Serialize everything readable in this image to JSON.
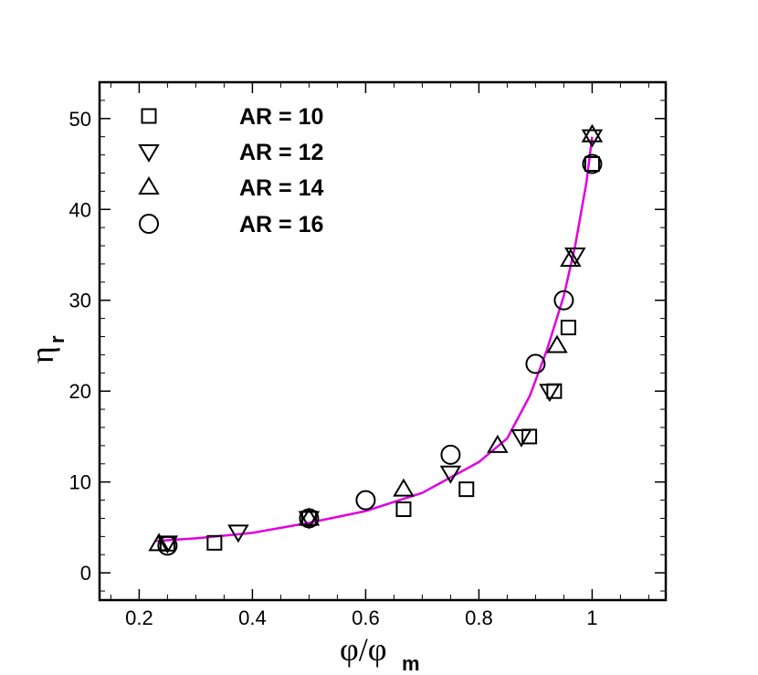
{
  "chart_data": {
    "type": "scatter",
    "xlabel": "φ/φ",
    "xlabel_sub": "m",
    "ylabel": "η",
    "ylabel_sub": "r",
    "xlim": [
      0.13,
      1.13
    ],
    "ylim": [
      -3,
      54
    ],
    "x_ticks": [
      0.2,
      0.4,
      0.6,
      0.8,
      1
    ],
    "x_tick_labels": [
      "0.2",
      "0.4",
      "0.6",
      "0.8",
      "1"
    ],
    "y_ticks": [
      0,
      10,
      20,
      30,
      40,
      50
    ],
    "y_tick_labels": [
      "0",
      "10",
      "20",
      "30",
      "40",
      "50"
    ],
    "grid": false,
    "legend_position": "top-left",
    "series": [
      {
        "name": "AR = 10",
        "marker": "square",
        "points": [
          [
            0.25,
            3.2
          ],
          [
            0.333,
            3.3
          ],
          [
            0.5,
            6.0
          ],
          [
            0.667,
            7.0
          ],
          [
            0.778,
            9.2
          ],
          [
            0.889,
            15.0
          ],
          [
            0.933,
            20.0
          ],
          [
            0.958,
            27.0
          ],
          [
            1.0,
            45.0
          ]
        ]
      },
      {
        "name": "AR = 12",
        "marker": "triangle-down",
        "points": [
          [
            0.25,
            3.3
          ],
          [
            0.375,
            4.5
          ],
          [
            0.5,
            6.0
          ],
          [
            0.75,
            11.0
          ],
          [
            0.875,
            15.0
          ],
          [
            0.925,
            20.0
          ],
          [
            0.97,
            35.0
          ],
          [
            1.0,
            48.0
          ]
        ]
      },
      {
        "name": "AR = 14",
        "marker": "triangle-up",
        "points": [
          [
            0.235,
            3.2
          ],
          [
            0.5,
            6.0
          ],
          [
            0.667,
            9.2
          ],
          [
            0.833,
            14.0
          ],
          [
            0.938,
            25.0
          ],
          [
            0.962,
            34.5
          ],
          [
            1.0,
            48.2
          ]
        ]
      },
      {
        "name": "AR = 16",
        "marker": "circle",
        "points": [
          [
            0.25,
            3.0
          ],
          [
            0.5,
            6.0
          ],
          [
            0.6,
            8.0
          ],
          [
            0.75,
            13.0
          ],
          [
            0.9,
            23.0
          ],
          [
            0.95,
            30.0
          ],
          [
            1.0,
            45.0
          ]
        ]
      }
    ],
    "fit_line": {
      "color": "#e000e0",
      "points": [
        [
          0.23,
          3.5
        ],
        [
          0.3,
          3.8
        ],
        [
          0.4,
          4.4
        ],
        [
          0.5,
          5.5
        ],
        [
          0.6,
          6.8
        ],
        [
          0.7,
          8.8
        ],
        [
          0.8,
          12.2
        ],
        [
          0.85,
          14.8
        ],
        [
          0.89,
          19.5
        ],
        [
          0.92,
          24.5
        ],
        [
          0.95,
          30.5
        ],
        [
          0.97,
          36.0
        ],
        [
          0.99,
          43.0
        ],
        [
          1.0,
          48.0
        ]
      ]
    }
  }
}
